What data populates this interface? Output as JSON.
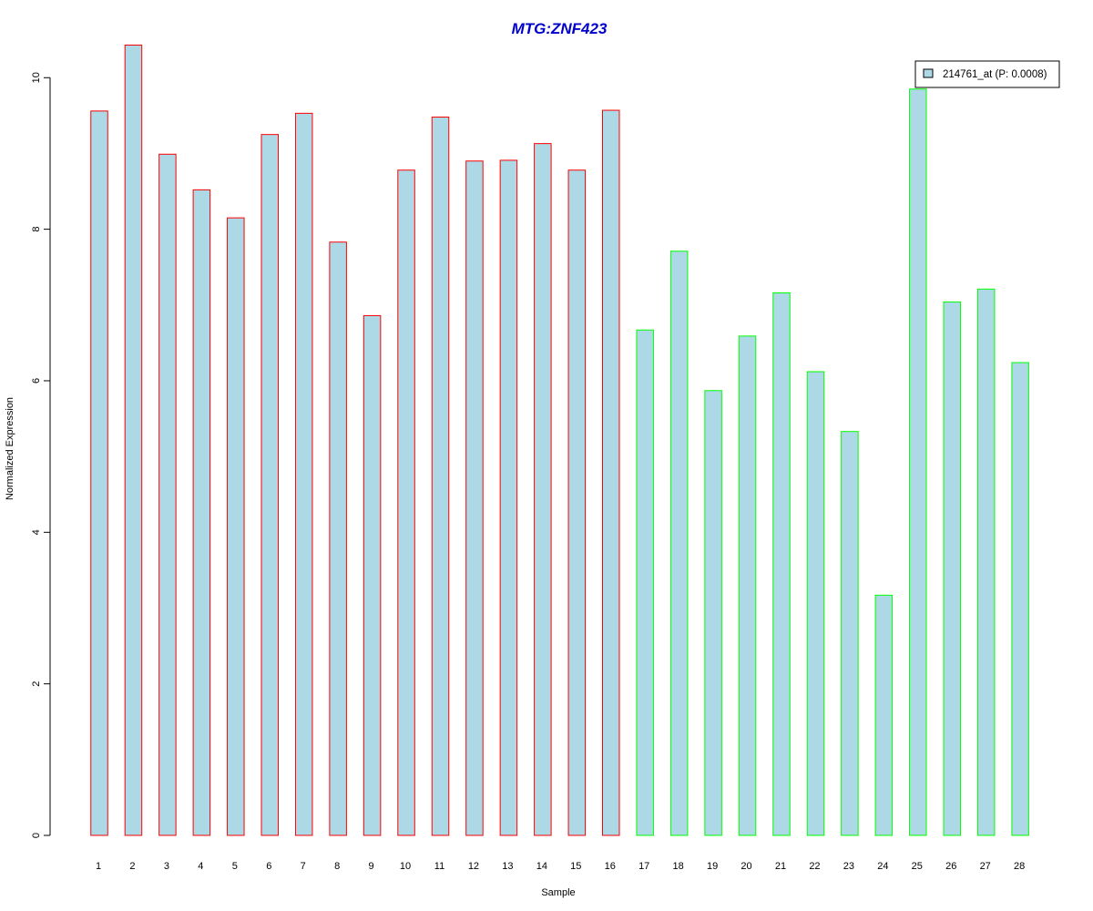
{
  "chart_data": {
    "type": "bar",
    "title": "MTG:ZNF423",
    "title_color": "#0000CC",
    "xlabel": "Sample",
    "ylabel": "Normalized Expression",
    "ylim": [
      0,
      10.4
    ],
    "yticks": [
      0,
      2,
      4,
      6,
      8,
      10
    ],
    "categories": [
      "1",
      "2",
      "3",
      "4",
      "5",
      "6",
      "7",
      "8",
      "9",
      "10",
      "11",
      "12",
      "13",
      "14",
      "15",
      "16",
      "17",
      "18",
      "19",
      "20",
      "21",
      "22",
      "23",
      "24",
      "25",
      "26",
      "27",
      "28"
    ],
    "values": [
      9.56,
      10.43,
      8.99,
      8.52,
      8.15,
      9.25,
      9.53,
      7.83,
      6.86,
      8.78,
      9.48,
      8.9,
      8.91,
      9.13,
      8.78,
      9.57,
      6.67,
      7.71,
      5.87,
      6.59,
      7.16,
      6.12,
      5.33,
      3.17,
      9.85,
      7.04,
      7.21,
      6.24
    ],
    "groups": [
      1,
      1,
      1,
      1,
      1,
      1,
      1,
      1,
      1,
      1,
      1,
      1,
      1,
      1,
      1,
      1,
      2,
      2,
      2,
      2,
      2,
      2,
      2,
      2,
      2,
      2,
      2,
      2
    ],
    "fill_color": "#ADD8E6",
    "group_border_colors": {
      "1": "#FF0000",
      "2": "#00FF00"
    },
    "legend": {
      "label": "214761_at (P: 0.0008)",
      "position": "top-right"
    },
    "grid": false
  }
}
